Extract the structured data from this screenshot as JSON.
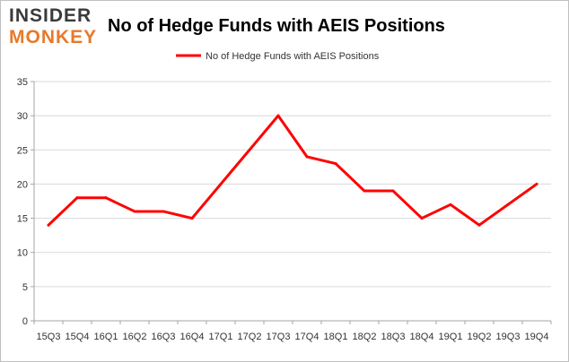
{
  "logo": {
    "line1": "INSIDER",
    "line2": "MONKEY"
  },
  "colors": {
    "series": "#ff0000",
    "grid": "#d9d9d9",
    "axis": "#a6a6a6",
    "frame": "#bfbfbf"
  },
  "chart_data": {
    "type": "line",
    "title": "No of Hedge Funds with AEIS Positions",
    "xlabel": "",
    "ylabel": "",
    "categories": [
      "15Q3",
      "15Q4",
      "16Q1",
      "16Q2",
      "16Q3",
      "16Q4",
      "17Q1",
      "17Q2",
      "17Q3",
      "17Q4",
      "18Q1",
      "18Q2",
      "18Q3",
      "18Q4",
      "19Q1",
      "19Q2",
      "19Q3",
      "19Q4"
    ],
    "series": [
      {
        "name": "No of Hedge Funds with AEIS Positions",
        "values": [
          14,
          18,
          18,
          16,
          16,
          15,
          20,
          25,
          30,
          24,
          23,
          19,
          19,
          15,
          17,
          14,
          17,
          20
        ]
      }
    ],
    "ylim": [
      0,
      35
    ],
    "yticks": [
      0,
      5,
      10,
      15,
      20,
      25,
      30,
      35
    ],
    "grid": true,
    "legend": "top-center"
  }
}
